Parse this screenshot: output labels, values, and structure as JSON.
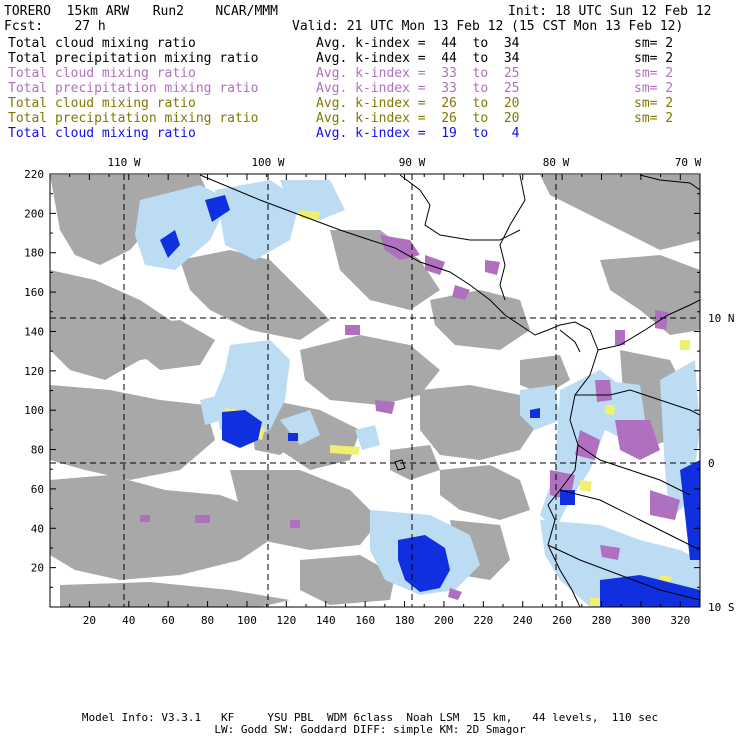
{
  "header": {
    "title": "TORERO  15km ARW   Run2    NCAR/MMM",
    "init": "Init: 18 UTC Sun 12 Feb 12",
    "fcst": "Fcst:    27 h",
    "valid": "Valid: 21 UTC Mon 13 Feb 12 (15 CST Mon 13 Feb 12)"
  },
  "legend": [
    {
      "field": "Total cloud mixing ratio",
      "stat": "Avg. k-index =  44  to  34",
      "sm": "sm= 2",
      "color": "#000000"
    },
    {
      "field": "Total precipitation mixing ratio",
      "stat": "Avg. k-index =  44  to  34",
      "sm": "sm= 2",
      "color": "#000000"
    },
    {
      "field": "Total cloud mixing ratio",
      "stat": "Avg. k-index =  33  to  25",
      "sm": "sm= 2",
      "color": "#b070c0"
    },
    {
      "field": "Total precipitation mixing ratio",
      "stat": "Avg. k-index =  33  to  25",
      "sm": "sm= 2",
      "color": "#b070c0"
    },
    {
      "field": "Total cloud mixing ratio",
      "stat": "Avg. k-index =  26  to  20",
      "sm": "sm= 2",
      "color": "#807800"
    },
    {
      "field": "Total precipitation mixing ratio",
      "stat": "Avg. k-index =  26  to  20",
      "sm": "sm= 2",
      "color": "#807800"
    },
    {
      "field": "Total cloud mixing ratio",
      "stat": "Avg. k-index =  19  to   4",
      "sm": "",
      "color": "#1010ee"
    }
  ],
  "map": {
    "lon_labels": [
      "110 W",
      "100 W",
      "90 W",
      "80 W",
      "70 W"
    ],
    "lat_labels": [
      "10 N",
      "0",
      "10 S"
    ],
    "x_ticks": [
      "20",
      "40",
      "60",
      "80",
      "100",
      "120",
      "140",
      "160",
      "180",
      "200",
      "220",
      "240",
      "260",
      "280",
      "300",
      "320"
    ],
    "y_ticks": [
      "220",
      "200",
      "180",
      "160",
      "140",
      "120",
      "100",
      "80",
      "60",
      "40",
      "20"
    ],
    "colors": {
      "gray_cloud": "#a8a8a8",
      "violet": "#b070c0",
      "yellow": "#f0f070",
      "light_blue": "#bcdcf4",
      "blue": "#1030e0"
    }
  },
  "footer": {
    "line1": "Model Info: V3.3.1   KF     YSU PBL  WDM 6class  Noah LSM  15 km,   44 levels,  110 sec",
    "line2": "LW: Godd SW: Goddard DIFF: simple KM: 2D Smagor"
  }
}
